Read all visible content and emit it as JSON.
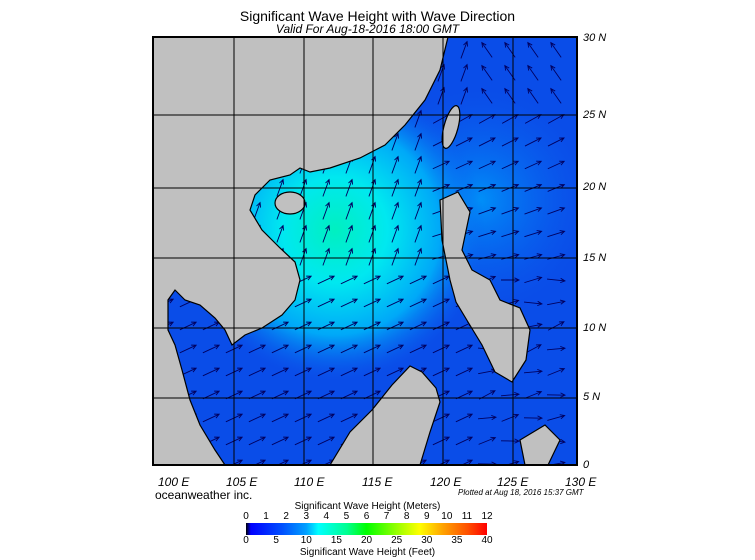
{
  "title": "Significant Wave Height with Wave Direction",
  "subtitle": "Valid For Aug-18-2016 18:00 GMT",
  "map": {
    "region": "South China Sea",
    "lon_labels": [
      "100 E",
      "105 E",
      "110 E",
      "115 E",
      "120 E",
      "125 E",
      "130 E"
    ],
    "lat_labels": [
      "30 N",
      "25 N",
      "20 N",
      "15 N",
      "10 N",
      "5 N",
      "0"
    ],
    "land_color": "#c0c0c0",
    "ocean_low_color": "#0a4de8",
    "ocean_high_color": "#00f0f0"
  },
  "footer": {
    "brand": "oceanweather inc.",
    "plotted": "Plotted at Aug 18, 2016 15:37 GMT"
  },
  "colorbar": {
    "title_meters": "Significant Wave Height (Meters)",
    "title_feet": "Significant Wave Height (Feet)",
    "meters": [
      "0",
      "1",
      "2",
      "3",
      "4",
      "5",
      "6",
      "7",
      "8",
      "9",
      "10",
      "11",
      "12"
    ],
    "feet": [
      "0",
      "5",
      "10",
      "15",
      "20",
      "25",
      "30",
      "35",
      "40"
    ]
  }
}
